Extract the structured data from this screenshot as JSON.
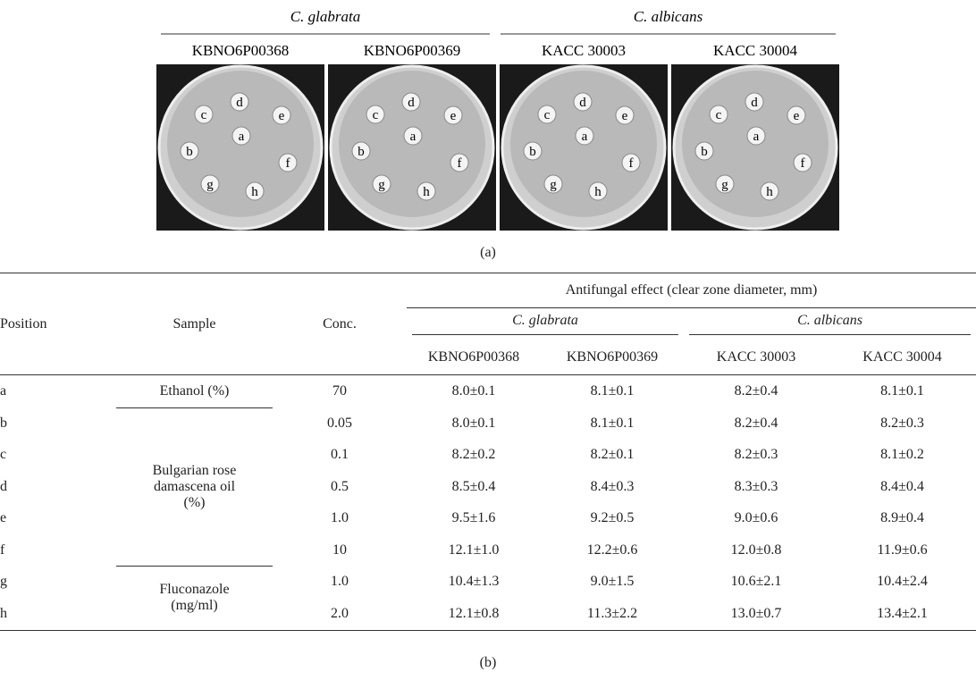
{
  "figure_a": {
    "groups": [
      {
        "name": "C. glabrata",
        "strains": [
          "KBNO6P00368",
          "KBNO6P00369"
        ]
      },
      {
        "name": "C. albicans",
        "strains": [
          "KACC 30003",
          "KACC 30004"
        ]
      }
    ],
    "plates": [
      {
        "labels": [
          "a",
          "b",
          "c",
          "d",
          "e",
          "f",
          "g",
          "h"
        ]
      },
      {
        "labels": [
          "a",
          "b",
          "c",
          "d",
          "e",
          "f",
          "g",
          "h"
        ]
      },
      {
        "labels": [
          "a",
          "b",
          "c",
          "d",
          "e",
          "f",
          "g",
          "h"
        ]
      },
      {
        "labels": [
          "a",
          "b",
          "c",
          "d",
          "e",
          "f",
          "g",
          "h"
        ]
      }
    ],
    "caption": "(a)"
  },
  "table": {
    "header": {
      "position": "Position",
      "sample": "Sample",
      "conc": "Conc.",
      "effect": "Antifungal effect (clear zone diameter, mm)",
      "species": [
        "C. glabrata",
        "C. albicans"
      ],
      "strains": [
        "KBNO6P00368",
        "KBNO6P00369",
        "KACC 30003",
        "KACC 30004"
      ]
    },
    "samples": [
      {
        "name": "Ethanol (%)",
        "rows": [
          [
            "a",
            "70",
            "8.0±0.1",
            "8.1±0.1",
            "8.2±0.4",
            "8.1±0.1"
          ]
        ]
      },
      {
        "name": "Bulgarian rose damascena oil (%)",
        "rows": [
          [
            "b",
            "0.05",
            "8.0±0.1",
            "8.1±0.1",
            "8.2±0.4",
            "8.2±0.3"
          ],
          [
            "c",
            "0.1",
            "8.2±0.2",
            "8.2±0.1",
            "8.2±0.3",
            "8.1±0.2"
          ],
          [
            "d",
            "0.5",
            "8.5±0.4",
            "8.4±0.3",
            "8.3±0.3",
            "8.4±0.4"
          ],
          [
            "e",
            "1.0",
            "9.5±1.6",
            "9.2±0.5",
            "9.0±0.6",
            "8.9±0.4"
          ],
          [
            "f",
            "10",
            "12.1±1.0",
            "12.2±0.6",
            "12.0±0.8",
            "11.9±0.6"
          ]
        ]
      },
      {
        "name": "Fluconazole (mg/ml)",
        "rows": [
          [
            "g",
            "1.0",
            "10.4±1.3",
            "9.0±1.5",
            "10.6±2.1",
            "10.4±2.4"
          ],
          [
            "h",
            "2.0",
            "12.1±0.8",
            "11.3±2.2",
            "13.0±0.7",
            "13.4±2.1"
          ]
        ]
      }
    ],
    "caption": "(b)"
  }
}
